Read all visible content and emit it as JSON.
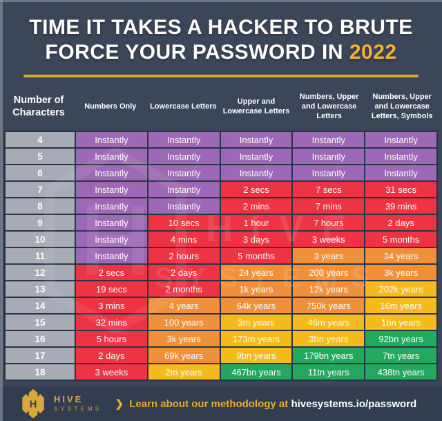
{
  "title": {
    "line1": "TIME IT TAKES A HACKER TO BRUTE",
    "line2_prefix": "FORCE YOUR PASSWORD IN ",
    "year": "2022"
  },
  "colors": {
    "background": "#3b4658",
    "grid": "#2a3448",
    "gold": "#d9a733",
    "year_gold": "#f0b232",
    "gray": "#a6abb4",
    "purple": "#9d68b5",
    "red": "#ee3345",
    "orange": "#f0913a",
    "yellow": "#f5ba1c",
    "green": "#23a95f"
  },
  "chart_data": {
    "type": "table",
    "title": "TIME IT TAKES A HACKER TO BRUTE FORCE YOUR PASSWORD IN 2022",
    "columns": [
      "Number of Characters",
      "Numbers Only",
      "Lowercase Letters",
      "Upper and Lowercase Letters",
      "Numbers, Upper and Lowercase Letters",
      "Numbers, Upper and Lowercase Letters, Symbols"
    ],
    "rows": [
      {
        "chars": "4",
        "cells": [
          {
            "text": "Instantly",
            "color": "purple"
          },
          {
            "text": "Instantly",
            "color": "purple"
          },
          {
            "text": "Instantly",
            "color": "purple"
          },
          {
            "text": "Instantly",
            "color": "purple"
          },
          {
            "text": "Instantly",
            "color": "purple"
          }
        ]
      },
      {
        "chars": "5",
        "cells": [
          {
            "text": "Instantly",
            "color": "purple"
          },
          {
            "text": "Instantly",
            "color": "purple"
          },
          {
            "text": "Instantly",
            "color": "purple"
          },
          {
            "text": "Instantly",
            "color": "purple"
          },
          {
            "text": "Instantly",
            "color": "purple"
          }
        ]
      },
      {
        "chars": "6",
        "cells": [
          {
            "text": "Instantly",
            "color": "purple"
          },
          {
            "text": "Instantly",
            "color": "purple"
          },
          {
            "text": "Instantly",
            "color": "purple"
          },
          {
            "text": "Instantly",
            "color": "purple"
          },
          {
            "text": "Instantly",
            "color": "purple"
          }
        ]
      },
      {
        "chars": "7",
        "cells": [
          {
            "text": "Instantly",
            "color": "purple"
          },
          {
            "text": "Instantly",
            "color": "purple"
          },
          {
            "text": "2 secs",
            "color": "red"
          },
          {
            "text": "7 secs",
            "color": "red"
          },
          {
            "text": "31 secs",
            "color": "red"
          }
        ]
      },
      {
        "chars": "8",
        "cells": [
          {
            "text": "Instantly",
            "color": "purple"
          },
          {
            "text": "Instantly",
            "color": "purple"
          },
          {
            "text": "2 mins",
            "color": "red"
          },
          {
            "text": "7 mins",
            "color": "red"
          },
          {
            "text": "39 mins",
            "color": "red"
          }
        ]
      },
      {
        "chars": "9",
        "cells": [
          {
            "text": "Instantly",
            "color": "purple"
          },
          {
            "text": "10 secs",
            "color": "red"
          },
          {
            "text": "1 hour",
            "color": "red"
          },
          {
            "text": "7 hours",
            "color": "red"
          },
          {
            "text": "2 days",
            "color": "red"
          }
        ]
      },
      {
        "chars": "10",
        "cells": [
          {
            "text": "Instantly",
            "color": "purple"
          },
          {
            "text": "4 mins",
            "color": "red"
          },
          {
            "text": "3 days",
            "color": "red"
          },
          {
            "text": "3 weeks",
            "color": "red"
          },
          {
            "text": "5 months",
            "color": "red"
          }
        ]
      },
      {
        "chars": "11",
        "cells": [
          {
            "text": "Instantly",
            "color": "purple"
          },
          {
            "text": "2 hours",
            "color": "red"
          },
          {
            "text": "5 months",
            "color": "red"
          },
          {
            "text": "3 years",
            "color": "orange"
          },
          {
            "text": "34 years",
            "color": "orange"
          }
        ]
      },
      {
        "chars": "12",
        "cells": [
          {
            "text": "2 secs",
            "color": "red"
          },
          {
            "text": "2 days",
            "color": "red"
          },
          {
            "text": "24 years",
            "color": "orange"
          },
          {
            "text": "200 years",
            "color": "orange"
          },
          {
            "text": "3k years",
            "color": "orange"
          }
        ]
      },
      {
        "chars": "13",
        "cells": [
          {
            "text": "19 secs",
            "color": "red"
          },
          {
            "text": "2 months",
            "color": "red"
          },
          {
            "text": "1k years",
            "color": "orange"
          },
          {
            "text": "12k years",
            "color": "orange"
          },
          {
            "text": "202k years",
            "color": "yellow"
          }
        ]
      },
      {
        "chars": "14",
        "cells": [
          {
            "text": "3 mins",
            "color": "red"
          },
          {
            "text": "4 years",
            "color": "orange"
          },
          {
            "text": "64k years",
            "color": "orange"
          },
          {
            "text": "750k years",
            "color": "orange"
          },
          {
            "text": "16m years",
            "color": "yellow"
          }
        ]
      },
      {
        "chars": "15",
        "cells": [
          {
            "text": "32 mins",
            "color": "red"
          },
          {
            "text": "100 years",
            "color": "orange"
          },
          {
            "text": "3m years",
            "color": "yellow"
          },
          {
            "text": "46m years",
            "color": "yellow"
          },
          {
            "text": "1bn years",
            "color": "yellow"
          }
        ]
      },
      {
        "chars": "16",
        "cells": [
          {
            "text": "5 hours",
            "color": "red"
          },
          {
            "text": "3k years",
            "color": "orange"
          },
          {
            "text": "173m years",
            "color": "yellow"
          },
          {
            "text": "3bn years",
            "color": "yellow"
          },
          {
            "text": "92bn years",
            "color": "green"
          }
        ]
      },
      {
        "chars": "17",
        "cells": [
          {
            "text": "2 days",
            "color": "red"
          },
          {
            "text": "69k years",
            "color": "orange"
          },
          {
            "text": "9bn years",
            "color": "yellow"
          },
          {
            "text": "179bn years",
            "color": "green"
          },
          {
            "text": "7tn years",
            "color": "green"
          }
        ]
      },
      {
        "chars": "18",
        "cells": [
          {
            "text": "3 weeks",
            "color": "red"
          },
          {
            "text": "2m years",
            "color": "yellow"
          },
          {
            "text": "467bn years",
            "color": "green"
          },
          {
            "text": "11tn years",
            "color": "green"
          },
          {
            "text": "438tn years",
            "color": "green"
          }
        ]
      }
    ]
  },
  "watermark": {
    "line1": "HIVE",
    "line2": "SYSTEMS"
  },
  "footer": {
    "logo_letter": "H",
    "logo_line1": "HIVE",
    "logo_line2": "SYSTEMS",
    "arrow": "❯",
    "learn_text": "Learn about our methodology at",
    "site_text": "hivesystems.io/password"
  }
}
